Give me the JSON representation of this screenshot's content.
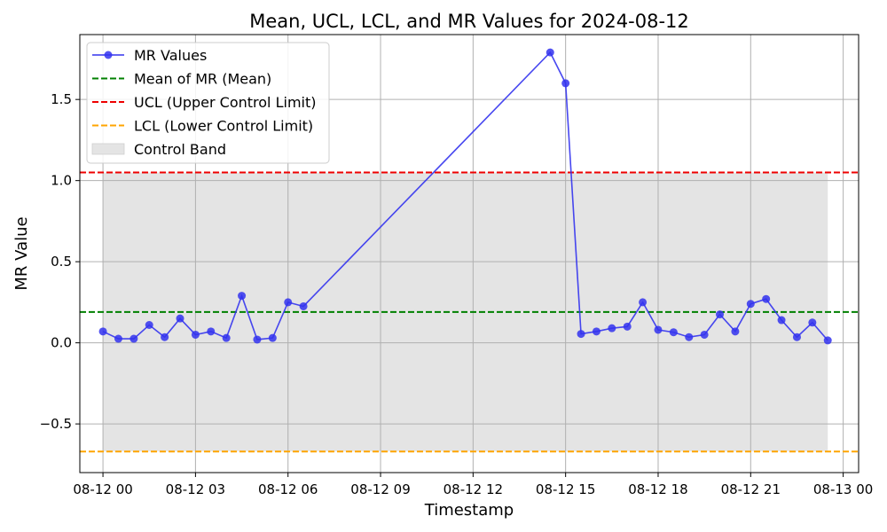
{
  "chart_data": {
    "type": "line",
    "title": "Mean, UCL, LCL, and MR Values for 2024-08-12",
    "xlabel": "Timestamp",
    "ylabel": "MR Value",
    "xlim": [
      "2024-08-11T23:15",
      "2024-08-13T00:30"
    ],
    "ylim": [
      -0.8,
      1.9
    ],
    "grid": true,
    "legend_position": "top-left",
    "x_ticks": [
      {
        "t": "2024-08-12T00:00",
        "label": "08-12 00"
      },
      {
        "t": "2024-08-12T03:00",
        "label": "08-12 03"
      },
      {
        "t": "2024-08-12T06:00",
        "label": "08-12 06"
      },
      {
        "t": "2024-08-12T09:00",
        "label": "08-12 09"
      },
      {
        "t": "2024-08-12T12:00",
        "label": "08-12 12"
      },
      {
        "t": "2024-08-12T15:00",
        "label": "08-12 15"
      },
      {
        "t": "2024-08-12T18:00",
        "label": "08-12 18"
      },
      {
        "t": "2024-08-12T21:00",
        "label": "08-12 21"
      },
      {
        "t": "2024-08-13T00:00",
        "label": "08-13 00"
      }
    ],
    "y_ticks": [
      {
        "v": -0.5,
        "label": "−0.5"
      },
      {
        "v": 0.0,
        "label": "0.0"
      },
      {
        "v": 0.5,
        "label": "0.5"
      },
      {
        "v": 1.0,
        "label": "1.0"
      },
      {
        "v": 1.5,
        "label": "1.5"
      }
    ],
    "series": [
      {
        "name": "MR Values",
        "color": "#3333ee",
        "points": [
          {
            "t": "2024-08-12T00:00",
            "v": 0.07
          },
          {
            "t": "2024-08-12T00:30",
            "v": 0.025
          },
          {
            "t": "2024-08-12T01:00",
            "v": 0.025
          },
          {
            "t": "2024-08-12T01:30",
            "v": 0.11
          },
          {
            "t": "2024-08-12T02:00",
            "v": 0.035
          },
          {
            "t": "2024-08-12T02:30",
            "v": 0.15
          },
          {
            "t": "2024-08-12T03:00",
            "v": 0.05
          },
          {
            "t": "2024-08-12T03:30",
            "v": 0.07
          },
          {
            "t": "2024-08-12T04:00",
            "v": 0.03
          },
          {
            "t": "2024-08-12T04:30",
            "v": 0.29
          },
          {
            "t": "2024-08-12T05:00",
            "v": 0.02
          },
          {
            "t": "2024-08-12T05:30",
            "v": 0.03
          },
          {
            "t": "2024-08-12T06:00",
            "v": 0.25
          },
          {
            "t": "2024-08-12T06:30",
            "v": 0.225
          },
          {
            "t": "2024-08-12T14:30",
            "v": 1.79
          },
          {
            "t": "2024-08-12T15:00",
            "v": 1.6
          },
          {
            "t": "2024-08-12T15:30",
            "v": 0.055
          },
          {
            "t": "2024-08-12T16:00",
            "v": 0.07
          },
          {
            "t": "2024-08-12T16:30",
            "v": 0.09
          },
          {
            "t": "2024-08-12T17:00",
            "v": 0.1
          },
          {
            "t": "2024-08-12T17:30",
            "v": 0.25
          },
          {
            "t": "2024-08-12T18:00",
            "v": 0.08
          },
          {
            "t": "2024-08-12T18:30",
            "v": 0.065
          },
          {
            "t": "2024-08-12T19:00",
            "v": 0.035
          },
          {
            "t": "2024-08-12T19:30",
            "v": 0.05
          },
          {
            "t": "2024-08-12T20:00",
            "v": 0.175
          },
          {
            "t": "2024-08-12T20:30",
            "v": 0.07
          },
          {
            "t": "2024-08-12T21:00",
            "v": 0.24
          },
          {
            "t": "2024-08-12T21:30",
            "v": 0.27
          },
          {
            "t": "2024-08-12T22:00",
            "v": 0.14
          },
          {
            "t": "2024-08-12T22:30",
            "v": 0.035
          },
          {
            "t": "2024-08-12T23:00",
            "v": 0.125
          },
          {
            "t": "2024-08-12T23:30",
            "v": 0.015
          }
        ]
      }
    ],
    "reference_lines": [
      {
        "name": "Mean of MR (Mean)",
        "value": 0.19,
        "color": "#008000",
        "style": "dashed"
      },
      {
        "name": "UCL (Upper Control Limit)",
        "value": 1.05,
        "color": "#ee0000",
        "style": "dashed"
      },
      {
        "name": "LCL (Lower Control Limit)",
        "value": -0.67,
        "color": "#ffa500",
        "style": "dashed"
      }
    ],
    "band": {
      "name": "Control Band",
      "from": -0.67,
      "to": 1.05,
      "color": "#e4e4e4",
      "x_start": "2024-08-12T00:00",
      "x_end": "2024-08-12T23:30"
    },
    "legend": [
      "MR Values",
      "Mean of MR (Mean)",
      "UCL (Upper Control Limit)",
      "LCL (Lower Control Limit)",
      "Control Band"
    ]
  }
}
